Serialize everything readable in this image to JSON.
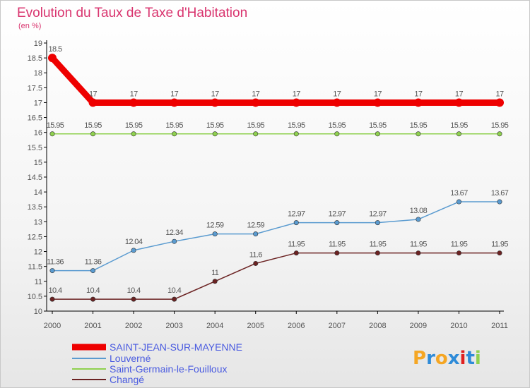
{
  "chart_data": {
    "type": "line",
    "title": "Evolution du Taux de Taxe d'Habitation",
    "subtitle": "(en %)",
    "xlabel": "",
    "ylabel": "",
    "categories": [
      "2000",
      "2001",
      "2002",
      "2003",
      "2004",
      "2005",
      "2006",
      "2007",
      "2008",
      "2009",
      "2010",
      "2011"
    ],
    "ylim": [
      10,
      19
    ],
    "yticks": [
      "10",
      "10.5",
      "11",
      "11.5",
      "12",
      "12.5",
      "13",
      "13.5",
      "14",
      "14.5",
      "15",
      "15.5",
      "16",
      "16.5",
      "17",
      "17.5",
      "18",
      "18.5",
      "19"
    ],
    "grid": false,
    "legend_position": "bottom-left",
    "series": [
      {
        "name": "SAINT-JEAN-SUR-MAYENNE",
        "color": "#ee0000",
        "values": [
          18.5,
          17,
          17,
          17,
          17,
          17,
          17,
          17,
          17,
          17,
          17,
          17
        ],
        "labels": [
          "18.5",
          "17",
          "17",
          "17",
          "17",
          "17",
          "17",
          "17",
          "17",
          "17",
          "17",
          "17"
        ]
      },
      {
        "name": "Louverné",
        "color": "#5a9bd0",
        "values": [
          11.36,
          11.36,
          12.04,
          12.34,
          12.59,
          12.59,
          12.97,
          12.97,
          12.97,
          13.08,
          13.67,
          13.67
        ],
        "labels": [
          "11.36",
          "11.36",
          "12.04",
          "12.34",
          "12.59",
          "12.59",
          "12.97",
          "12.97",
          "12.97",
          "13.08",
          "13.67",
          "13.67"
        ]
      },
      {
        "name": "Saint-Germain-le-Fouilloux",
        "color": "#8fd14f",
        "values": [
          15.95,
          15.95,
          15.95,
          15.95,
          15.95,
          15.95,
          15.95,
          15.95,
          15.95,
          15.95,
          15.95,
          15.95
        ],
        "labels": [
          "15.95",
          "15.95",
          "15.95",
          "15.95",
          "15.95",
          "15.95",
          "15.95",
          "15.95",
          "15.95",
          "15.95",
          "15.95",
          "15.95"
        ]
      },
      {
        "name": "Changé",
        "color": "#6b2222",
        "values": [
          10.4,
          10.4,
          10.4,
          10.4,
          11,
          11.6,
          11.95,
          11.95,
          11.95,
          11.95,
          11.95,
          11.95
        ],
        "labels": [
          "10.4",
          "10.4",
          "10.4",
          "10.4",
          "11",
          "11.6",
          "11.95",
          "11.95",
          "11.95",
          "11.95",
          "11.95",
          "11.95"
        ]
      }
    ]
  },
  "logo": {
    "letters": [
      "P",
      "r",
      "o",
      "x",
      "i",
      "t",
      "i"
    ],
    "colors": [
      "#f5a623",
      "#2e8bd8",
      "#f5a623",
      "#2e8bd8",
      "#e02020",
      "#2e8bd8",
      "#8fd14f"
    ]
  }
}
